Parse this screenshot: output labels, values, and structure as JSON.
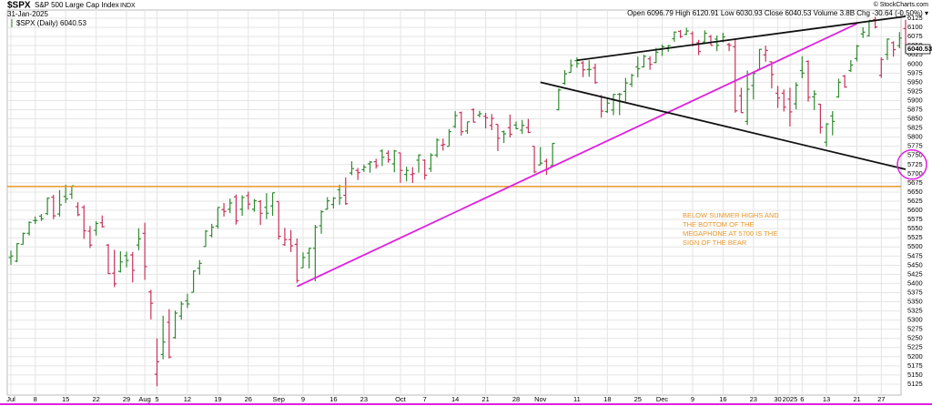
{
  "chart_data": {
    "type": "ohlc",
    "header": {
      "symbol": "$SPX",
      "name": "S&P 500 Large Cap Index",
      "exchange": "INDX",
      "date": "31-Jan-2025",
      "quote": "Open 6096.79  High 6120.91  Low 6030.93  Close 6040.53  Volume 3.8B  Chg -30.64 (-0.50%) ▾",
      "credit": "© StockCharts.com"
    },
    "legend": "$SPX (Daily) 6040.53",
    "last_price_label": "6040.53",
    "annotation": [
      "BELOW SUMMER HIGHS AND",
      "THE BOTTOM OF THE",
      "MEGAPHONE AT 5700 IS THE",
      "SIGN OF THE BEAR"
    ],
    "up_color": "#2e8b2e",
    "down_color": "#c8325a",
    "grid": true,
    "ylim": [
      5100,
      6140
    ],
    "yticks": [
      5125,
      5150,
      5175,
      5200,
      5225,
      5250,
      5275,
      5300,
      5325,
      5350,
      5375,
      5400,
      5425,
      5450,
      5475,
      5500,
      5525,
      5550,
      5575,
      5600,
      5625,
      5650,
      5675,
      5700,
      5725,
      5750,
      5775,
      5800,
      5825,
      5850,
      5875,
      5900,
      5925,
      5950,
      5975,
      6000,
      6025,
      6050,
      6075,
      6100,
      6125
    ],
    "categories": [
      "Jul",
      null,
      null,
      null,
      "8",
      null,
      null,
      null,
      null,
      "15",
      null,
      null,
      null,
      null,
      "22",
      null,
      null,
      null,
      null,
      "29",
      null,
      null,
      "Aug",
      null,
      "5",
      null,
      null,
      null,
      null,
      "12",
      null,
      null,
      null,
      null,
      "19",
      null,
      null,
      null,
      null,
      "26",
      null,
      null,
      null,
      null,
      "Sep",
      null,
      null,
      null,
      "9",
      null,
      null,
      null,
      null,
      "16",
      null,
      null,
      null,
      null,
      "23",
      null,
      null,
      null,
      null,
      null,
      "Oct",
      null,
      null,
      null,
      "7",
      null,
      null,
      null,
      null,
      "14",
      null,
      null,
      null,
      null,
      "21",
      null,
      null,
      null,
      null,
      "28",
      null,
      null,
      null,
      "Nov",
      null,
      null,
      null,
      null,
      null,
      "11",
      null,
      null,
      null,
      null,
      "18",
      null,
      null,
      null,
      null,
      "25",
      null,
      null,
      null,
      "Dec",
      null,
      null,
      null,
      null,
      "9",
      null,
      null,
      null,
      null,
      "16",
      null,
      null,
      null,
      null,
      "23",
      null,
      null,
      null,
      "30",
      null,
      "2025",
      null,
      "6",
      null,
      null,
      null,
      "13",
      null,
      null,
      null,
      null,
      "21",
      null,
      null,
      null,
      "27",
      null,
      null,
      null,
      null
    ],
    "ohlc": [
      [
        5471,
        5490,
        5451,
        5475
      ],
      [
        5461,
        5510,
        5458,
        5509
      ],
      [
        5507,
        5539,
        5507,
        5537
      ],
      [
        5537,
        5570,
        5531,
        5567
      ],
      [
        5572,
        5583,
        5563,
        5572
      ],
      [
        5584,
        5590,
        5571,
        5577
      ],
      [
        5591,
        5635,
        5587,
        5633
      ],
      [
        5636,
        5642,
        5576,
        5585
      ],
      [
        5590,
        5655,
        5583,
        5615
      ],
      [
        5638,
        5670,
        5620,
        5631
      ],
      [
        5644,
        5667,
        5631,
        5667
      ],
      [
        5610,
        5622,
        5584,
        5588
      ],
      [
        5608,
        5614,
        5522,
        5544
      ],
      [
        5543,
        5557,
        5497,
        5505
      ],
      [
        5545,
        5570,
        5531,
        5564
      ],
      [
        5566,
        5586,
        5553,
        5555
      ],
      [
        5505,
        5508,
        5426,
        5427
      ],
      [
        5428,
        5492,
        5390,
        5399
      ],
      [
        5433,
        5488,
        5430,
        5459
      ],
      [
        5476,
        5487,
        5444,
        5463
      ],
      [
        5478,
        5486,
        5403,
        5436
      ],
      [
        5505,
        5551,
        5491,
        5522
      ],
      [
        5537,
        5566,
        5410,
        5446
      ],
      [
        5377,
        5383,
        5302,
        5346
      ],
      [
        5152,
        5250,
        5119,
        5186
      ],
      [
        5206,
        5312,
        5193,
        5240
      ],
      [
        5294,
        5330,
        5195,
        5199
      ],
      [
        5252,
        5326,
        5249,
        5319
      ],
      [
        5311,
        5351,
        5301,
        5344
      ],
      [
        5353,
        5372,
        5333,
        5344
      ],
      [
        5376,
        5436,
        5376,
        5434
      ],
      [
        5442,
        5464,
        5424,
        5455
      ],
      [
        5501,
        5546,
        5501,
        5543
      ],
      [
        5531,
        5563,
        5526,
        5554
      ],
      [
        5557,
        5608,
        5550,
        5608
      ],
      [
        5602,
        5620,
        5583,
        5597
      ],
      [
        5603,
        5632,
        5592,
        5620
      ],
      [
        5637,
        5643,
        5561,
        5571
      ],
      [
        5603,
        5641,
        5585,
        5635
      ],
      [
        5640,
        5651,
        5602,
        5617
      ],
      [
        5603,
        5631,
        5596,
        5626
      ],
      [
        5624,
        5628,
        5560,
        5592
      ],
      [
        5608,
        5647,
        5576,
        5592
      ],
      [
        5612,
        5648,
        5585,
        5648
      ],
      [
        5624,
        5624,
        5520,
        5529
      ],
      [
        5506,
        5552,
        5503,
        5520
      ],
      [
        5520,
        5546,
        5486,
        5503
      ],
      [
        5507,
        5523,
        5402,
        5408
      ],
      [
        5443,
        5485,
        5443,
        5471
      ],
      [
        5483,
        5497,
        5441,
        5496
      ],
      [
        5496,
        5560,
        5406,
        5554
      ],
      [
        5558,
        5600,
        5536,
        5596
      ],
      [
        5603,
        5636,
        5602,
        5626
      ],
      [
        5616,
        5636,
        5605,
        5633
      ],
      [
        5656,
        5670,
        5615,
        5634
      ],
      [
        5641,
        5690,
        5615,
        5618
      ],
      [
        5702,
        5734,
        5696,
        5714
      ],
      [
        5709,
        5716,
        5683,
        5703
      ],
      [
        5711,
        5725,
        5705,
        5718
      ],
      [
        5727,
        5735,
        5703,
        5732
      ],
      [
        5733,
        5741,
        5714,
        5722
      ],
      [
        5762,
        5767,
        5721,
        5745
      ],
      [
        5756,
        5764,
        5730,
        5738
      ],
      [
        5727,
        5765,
        5704,
        5762
      ],
      [
        5757,
        5757,
        5675,
        5709
      ],
      [
        5698,
        5719,
        5679,
        5709
      ],
      [
        5698,
        5718,
        5675,
        5700
      ],
      [
        5737,
        5753,
        5703,
        5751
      ],
      [
        5737,
        5739,
        5684,
        5696
      ],
      [
        5714,
        5756,
        5705,
        5751
      ],
      [
        5751,
        5797,
        5745,
        5792
      ],
      [
        5778,
        5796,
        5763,
        5780
      ],
      [
        5775,
        5822,
        5775,
        5815
      ],
      [
        5829,
        5871,
        5825,
        5859
      ],
      [
        5867,
        5870,
        5804,
        5815
      ],
      [
        5817,
        5842,
        5809,
        5842
      ],
      [
        5875,
        5879,
        5840,
        5841
      ],
      [
        5860,
        5872,
        5854,
        5864
      ],
      [
        5857,
        5866,
        5824,
        5853
      ],
      [
        5832,
        5863,
        5819,
        5851
      ],
      [
        5835,
        5835,
        5762,
        5797
      ],
      [
        5815,
        5818,
        5784,
        5809
      ],
      [
        5826,
        5862,
        5799,
        5808
      ],
      [
        5833,
        5843,
        5822,
        5823
      ],
      [
        5819,
        5847,
        5809,
        5832
      ],
      [
        5826,
        5850,
        5811,
        5813
      ],
      [
        5775,
        5775,
        5702,
        5705
      ],
      [
        5724,
        5773,
        5723,
        5729
      ],
      [
        5734,
        5741,
        5697,
        5712
      ],
      [
        5722,
        5784,
        5719,
        5783
      ],
      [
        5875,
        5933,
        5873,
        5929
      ],
      [
        5947,
        5983,
        5943,
        5973
      ],
      [
        5977,
        6012,
        5976,
        5996
      ],
      [
        6009,
        6018,
        5990,
        6001
      ],
      [
        6003,
        6008,
        5964,
        5984
      ],
      [
        5985,
        6010,
        5965,
        5985
      ],
      [
        5989,
        6001,
        5946,
        5949
      ],
      [
        5912,
        5915,
        5853,
        5871
      ],
      [
        5870,
        5909,
        5866,
        5893
      ],
      [
        5874,
        5918,
        5860,
        5917
      ],
      [
        5917,
        5921,
        5860,
        5917
      ],
      [
        5925,
        5962,
        5897,
        5948
      ],
      [
        5945,
        5973,
        5937,
        5969
      ],
      [
        5992,
        6020,
        5963,
        5987
      ],
      [
        5992,
        6025,
        5990,
        6021
      ],
      [
        6014,
        6021,
        5984,
        5999
      ],
      [
        6004,
        6044,
        6003,
        6032
      ],
      [
        6040,
        6053,
        6022,
        6047
      ],
      [
        6042,
        6052,
        6033,
        6050
      ],
      [
        6069,
        6089,
        6061,
        6087
      ],
      [
        6089,
        6093,
        6071,
        6075
      ],
      [
        6081,
        6099,
        6079,
        6090
      ],
      [
        6083,
        6089,
        6048,
        6053
      ],
      [
        6058,
        6066,
        6024,
        6034
      ],
      [
        6060,
        6092,
        6058,
        6084
      ],
      [
        6075,
        6079,
        6051,
        6051
      ],
      [
        6068,
        6078,
        6035,
        6051
      ],
      [
        6063,
        6085,
        6059,
        6074
      ],
      [
        6053,
        6058,
        6035,
        6051
      ],
      [
        6047,
        6070,
        5867,
        5872
      ],
      [
        5913,
        5935,
        5866,
        5867
      ],
      [
        5843,
        5982,
        5833,
        5931
      ],
      [
        5941,
        5978,
        5903,
        5974
      ],
      [
        5985,
        6041,
        5982,
        6040
      ],
      [
        6025,
        6050,
        6006,
        6037
      ],
      [
        6006,
        6007,
        5933,
        5971
      ],
      [
        5920,
        5940,
        5880,
        5907
      ],
      [
        5920,
        5930,
        5870,
        5882
      ],
      [
        5904,
        5935,
        5829,
        5869
      ],
      [
        5891,
        5950,
        5876,
        5942
      ],
      [
        5982,
        6021,
        5961,
        5975
      ],
      [
        6007,
        6010,
        5897,
        5909
      ],
      [
        5910,
        5928,
        5874,
        5918
      ],
      [
        5890,
        5891,
        5810,
        5827
      ],
      [
        5786,
        5838,
        5774,
        5836
      ],
      [
        5858,
        5871,
        5805,
        5843
      ],
      [
        5910,
        5960,
        5908,
        5950
      ],
      [
        5967,
        5970,
        5935,
        5937
      ],
      [
        5982,
        6011,
        5978,
        5997
      ],
      [
        6015,
        6052,
        6007,
        6049
      ],
      [
        6082,
        6100,
        6071,
        6087
      ],
      [
        6077,
        6119,
        6075,
        6119
      ],
      [
        6121,
        6129,
        6097,
        6101
      ],
      [
        5969,
        6018,
        5962,
        6012
      ],
      [
        6026,
        6070,
        6011,
        6068
      ],
      [
        6058,
        6062,
        6020,
        6039
      ],
      [
        6050,
        6087,
        6043,
        6071
      ],
      [
        6096.79,
        6120.91,
        6030.93,
        6040.53
      ]
    ],
    "level_line": {
      "value": 5665,
      "color": "#e8962a"
    },
    "trendlines": [
      {
        "color": "#e020e0",
        "x": [
          47,
          139
        ],
        "y": [
          5392,
          6110
        ]
      },
      {
        "color": "#111111",
        "x": [
          93,
          147
        ],
        "y": [
          6010,
          6130
        ]
      },
      {
        "color": "#111111",
        "x": [
          87,
          147
        ],
        "y": [
          5950,
          5712
        ]
      }
    ],
    "target_circle": {
      "value": 5725,
      "color": "#e020e0"
    }
  }
}
